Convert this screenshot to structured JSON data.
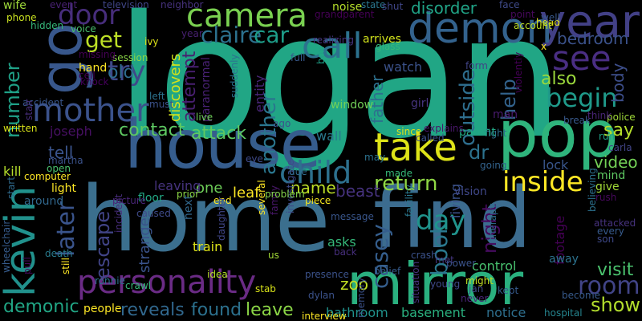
{
  "words": [
    {
      "text": "logan",
      "color": "#21a685"
    },
    {
      "text": "home",
      "color": "#3b6f8e"
    },
    {
      "text": "find",
      "color": "#3c6c8f"
    },
    {
      "text": "house",
      "color": "#365d8d"
    },
    {
      "text": "go",
      "color": "#38578c"
    },
    {
      "text": "pop",
      "color": "#2fb47c"
    },
    {
      "text": "mirror",
      "color": "#2ab07f"
    },
    {
      "text": "kevin",
      "color": "#21918c"
    },
    {
      "text": "personality",
      "color": "#6a2b85"
    },
    {
      "text": "year",
      "color": "#424086"
    },
    {
      "text": "demon",
      "color": "#33628d"
    },
    {
      "text": "camera",
      "color": "#7ad151"
    },
    {
      "text": "take",
      "color": "#dde318"
    },
    {
      "text": "child",
      "color": "#2d708e"
    },
    {
      "text": "see",
      "color": "#4a2e83"
    },
    {
      "text": "call",
      "color": "#2c728e"
    },
    {
      "text": "mother",
      "color": "#3b528b"
    },
    {
      "text": "inside",
      "color": "#fde725"
    },
    {
      "text": "door",
      "color": "#472d7b"
    },
    {
      "text": "try",
      "color": "#3e4989"
    },
    {
      "text": "later",
      "color": "#3a548c"
    },
    {
      "text": "room",
      "color": "#414487"
    },
    {
      "text": "book",
      "color": "#2a788e"
    },
    {
      "text": "day",
      "color": "#20938c"
    },
    {
      "text": "begin",
      "color": "#1f9a8a"
    },
    {
      "text": "get",
      "color": "#bddf26"
    },
    {
      "text": "return",
      "color": "#8fd744"
    },
    {
      "text": "casey",
      "color": "#355e8d"
    },
    {
      "text": "claire",
      "color": "#2c718e"
    },
    {
      "text": "car",
      "color": "#1e9d89"
    },
    {
      "text": "show",
      "color": "#b2dd2d"
    },
    {
      "text": "visit",
      "color": "#4ac16d"
    },
    {
      "text": "another",
      "color": "#2a768e"
    },
    {
      "text": "outside",
      "color": "#2e6e8e"
    },
    {
      "text": "number",
      "color": "#1fa187"
    },
    {
      "text": "attempt",
      "color": "#481f70"
    },
    {
      "text": "contact",
      "color": "#5ec962"
    },
    {
      "text": "escape",
      "color": "#414487"
    },
    {
      "text": "old",
      "color": "#2f6c8e"
    },
    {
      "text": "night",
      "color": "#460b5e"
    },
    {
      "text": "help",
      "color": "#33638d"
    },
    {
      "text": "also",
      "color": "#9bd93c"
    },
    {
      "text": "say",
      "color": "#b5de2b"
    },
    {
      "text": "video",
      "color": "#73d056"
    },
    {
      "text": "demonic",
      "color": "#21a685"
    },
    {
      "text": "reveals",
      "color": "#31688e"
    },
    {
      "text": "found",
      "color": "#2c718e"
    },
    {
      "text": "leave",
      "color": "#8bd646"
    },
    {
      "text": "attack",
      "color": "#5ec962"
    },
    {
      "text": "dr",
      "color": "#2c728e"
    },
    {
      "text": "tell",
      "color": "#3a548c"
    },
    {
      "text": "bedroom",
      "color": "#3b528b"
    },
    {
      "text": "disorder",
      "color": "#20a386"
    },
    {
      "text": "body",
      "color": "#3d4e8a"
    },
    {
      "text": "beast",
      "color": "#46327e"
    },
    {
      "text": "name",
      "color": "#bddf26"
    },
    {
      "text": "father",
      "color": "#2d708e"
    },
    {
      "text": "zoo",
      "color": "#c2df23"
    },
    {
      "text": "bathroom",
      "color": "#20928c"
    },
    {
      "text": "basement",
      "color": "#2ab07f"
    },
    {
      "text": "strange",
      "color": "#3a538b"
    },
    {
      "text": "control",
      "color": "#48c16e"
    },
    {
      "text": "footage",
      "color": "#440154"
    },
    {
      "text": "lock",
      "color": "#39568c"
    },
    {
      "text": "joseph",
      "color": "#471063"
    },
    {
      "text": "one",
      "color": "#6ece58"
    },
    {
      "text": "wall",
      "color": "#2a788e"
    },
    {
      "text": "discovers",
      "color": "#d2e21b"
    },
    {
      "text": "leaf",
      "color": "#fde725"
    },
    {
      "text": "entity",
      "color": "#482576"
    },
    {
      "text": "kill",
      "color": "#b5de2b"
    },
    {
      "text": "living",
      "color": "#3b528b"
    },
    {
      "text": "notice",
      "color": "#2e6f8e"
    },
    {
      "text": "hospital",
      "color": "#25848e"
    },
    {
      "text": "asks",
      "color": "#35b779"
    },
    {
      "text": "train",
      "color": "#dde318"
    },
    {
      "text": "people",
      "color": "#fde725"
    },
    {
      "text": "paranormal",
      "color": "#482173"
    },
    {
      "text": "leaving",
      "color": "#46337e"
    },
    {
      "text": "floor",
      "color": "#22a884"
    },
    {
      "text": "vision",
      "color": "#3f4788"
    },
    {
      "text": "mind",
      "color": "#5ec962"
    },
    {
      "text": "give",
      "color": "#a2da37"
    },
    {
      "text": "carla",
      "color": "#414487"
    },
    {
      "text": "police",
      "color": "#a0da39"
    },
    {
      "text": "away",
      "color": "#2c728e"
    },
    {
      "text": "arrives",
      "color": "#d0e11c"
    },
    {
      "text": "watch",
      "color": "#3b528b"
    },
    {
      "text": "window",
      "color": "#70cf57"
    },
    {
      "text": "girl",
      "color": "#46337e"
    },
    {
      "text": "man",
      "color": "#481a6c"
    },
    {
      "text": "noise",
      "color": "#b5de2b"
    },
    {
      "text": "state",
      "color": "#2a768e"
    },
    {
      "text": "head",
      "color": "#e5e419"
    },
    {
      "text": "well",
      "color": "#38598c"
    },
    {
      "text": "face",
      "color": "#3e4a89"
    },
    {
      "text": "account",
      "color": "#bddf26"
    },
    {
      "text": "light",
      "color": "#fde725"
    },
    {
      "text": "around",
      "color": "#31688e"
    },
    {
      "text": "open",
      "color": "#4ac16d"
    },
    {
      "text": "written",
      "color": "#d8e219"
    },
    {
      "text": "voice",
      "color": "#4ac16d"
    },
    {
      "text": "session",
      "color": "#8bd646"
    },
    {
      "text": "hand",
      "color": "#fde725"
    },
    {
      "text": "cell",
      "color": "#440154"
    },
    {
      "text": "live",
      "color": "#6ece58"
    },
    {
      "text": "must",
      "color": "#3b528b"
    },
    {
      "text": "left",
      "color": "#2c728e"
    },
    {
      "text": "fight",
      "color": "#2d708e"
    },
    {
      "text": "parent",
      "color": "#22a884"
    },
    {
      "text": "called",
      "color": "#3b528b"
    },
    {
      "text": "going",
      "color": "#33638d"
    },
    {
      "text": "since",
      "color": "#dde318"
    },
    {
      "text": "back",
      "color": "#472f7d"
    },
    {
      "text": "message",
      "color": "#39568c"
    },
    {
      "text": "several",
      "color": "#fde725"
    },
    {
      "text": "family",
      "color": "#481769"
    },
    {
      "text": "us",
      "color": "#a2da37"
    },
    {
      "text": "idea",
      "color": "#b5de2b"
    },
    {
      "text": "investigate",
      "color": "#3e4a89"
    },
    {
      "text": "next",
      "color": "#31688e"
    },
    {
      "text": "incident",
      "color": "#472d7b"
    },
    {
      "text": "crawl",
      "color": "#35b779"
    },
    {
      "text": "ronnie",
      "color": "#2c718e"
    },
    {
      "text": "stab",
      "color": "#d8e219"
    },
    {
      "text": "dylan",
      "color": "#3b528b"
    },
    {
      "text": "jan",
      "color": "#3e4989"
    },
    {
      "text": "never",
      "color": "#482576"
    },
    {
      "text": "interview",
      "color": "#fde725"
    },
    {
      "text": "phone",
      "color": "#c8e020"
    },
    {
      "text": "wife",
      "color": "#9fda3a"
    },
    {
      "text": "event",
      "color": "#482173"
    },
    {
      "text": "hidden",
      "color": "#35b779"
    },
    {
      "text": "television",
      "color": "#404688"
    },
    {
      "text": "neighbor",
      "color": "#46327e"
    },
    {
      "text": "grandparent",
      "color": "#440154"
    },
    {
      "text": "shut",
      "color": "#404688"
    },
    {
      "text": "point",
      "color": "#46085c"
    },
    {
      "text": "year",
      "color": "#482071"
    },
    {
      "text": "ivy",
      "color": "#dde318"
    },
    {
      "text": "missing",
      "color": "#440154"
    },
    {
      "text": "full",
      "color": "#38598c"
    },
    {
      "text": "realizing",
      "color": "#46337e"
    },
    {
      "text": "glass",
      "color": "#35b779"
    },
    {
      "text": "form",
      "color": "#414487"
    },
    {
      "text": "x",
      "color": "#fde725"
    },
    {
      "text": "knock",
      "color": "#44015a"
    },
    {
      "text": "accident",
      "color": "#39568c"
    },
    {
      "text": "stair",
      "color": "#472d7b"
    },
    {
      "text": "computer",
      "color": "#fde725"
    },
    {
      "text": "wheelchair",
      "color": "#365c8d"
    },
    {
      "text": "pull",
      "color": "#46085c"
    },
    {
      "text": "death",
      "color": "#297b8e"
    },
    {
      "text": "start",
      "color": "#2f6b8e"
    },
    {
      "text": "martha",
      "color": "#3b528b"
    },
    {
      "text": "picture",
      "color": "#482576"
    },
    {
      "text": "prior",
      "color": "#8bd646"
    },
    {
      "text": "end",
      "color": "#fde725"
    },
    {
      "text": "daughter",
      "color": "#404688"
    },
    {
      "text": "problem",
      "color": "#84d44b"
    },
    {
      "text": "piece",
      "color": "#f4e61e"
    },
    {
      "text": "caused",
      "color": "#3e4a89"
    },
    {
      "text": "due",
      "color": "#2f6b8e"
    },
    {
      "text": "eye",
      "color": "#3e4a89"
    },
    {
      "text": "made",
      "color": "#35b779"
    },
    {
      "text": "may",
      "color": "#2c728e"
    },
    {
      "text": "facility",
      "color": "#2a788e"
    },
    {
      "text": "rush",
      "color": "#46085c"
    },
    {
      "text": "attacked",
      "color": "#46327e"
    },
    {
      "text": "every",
      "color": "#375a8c"
    },
    {
      "text": "son",
      "color": "#3e4989"
    },
    {
      "text": "believing",
      "color": "#2c718e"
    },
    {
      "text": "belief",
      "color": "#365c8d"
    },
    {
      "text": "crash",
      "color": "#3b528b"
    },
    {
      "text": "met",
      "color": "#453781"
    },
    {
      "text": "power",
      "color": "#3a538b"
    },
    {
      "text": "might",
      "color": "#c2df23"
    },
    {
      "text": "young",
      "color": "#3e4a89"
    },
    {
      "text": "presence",
      "color": "#3b528b"
    },
    {
      "text": "ago",
      "color": "#3b528b"
    },
    {
      "text": "suddenly",
      "color": "#2c718e"
    },
    {
      "text": "therapy",
      "color": "#2f6c8e"
    },
    {
      "text": "violently",
      "color": "#440154"
    },
    {
      "text": "explains",
      "color": "#481769"
    },
    {
      "text": "break",
      "color": "#38598c"
    },
    {
      "text": "think",
      "color": "#482576"
    },
    {
      "text": "run",
      "color": "#1fa187"
    },
    {
      "text": "situation",
      "color": "#46337e"
    },
    {
      "text": "memory",
      "color": "#3b528b"
    },
    {
      "text": "still",
      "color": "#fde725"
    },
    {
      "text": "kept",
      "color": "#365c8d"
    },
    {
      "text": "become",
      "color": "#375a8c"
    },
    {
      "text": "box",
      "color": "#1fa187"
    }
  ]
}
